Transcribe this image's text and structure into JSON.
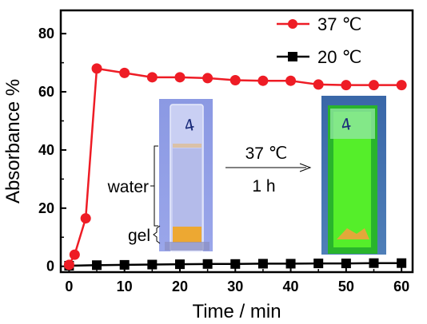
{
  "chart_data": {
    "type": "line",
    "xlabel": "Time / min",
    "ylabel": "Absorbance %",
    "xlim": [
      -1.5,
      62
    ],
    "ylim": [
      -2,
      88
    ],
    "xticks": [
      0,
      10,
      20,
      30,
      40,
      50,
      60
    ],
    "yticks": [
      0,
      20,
      40,
      60,
      80
    ],
    "legend_position": "top-right",
    "series": [
      {
        "name": "37 ℃",
        "color": "#ee1c25",
        "marker": "circle",
        "x": [
          0,
          1,
          3,
          5,
          10,
          15,
          20,
          25,
          30,
          35,
          40,
          45,
          50,
          55,
          60
        ],
        "y": [
          0.5,
          4,
          16.5,
          68,
          66.5,
          65,
          65,
          64.7,
          64,
          63.8,
          63.8,
          62.5,
          62.3,
          62.3,
          62.3
        ]
      },
      {
        "name": "20 ℃",
        "color": "#000000",
        "marker": "square",
        "x": [
          0,
          5,
          10,
          15,
          20,
          25,
          30,
          35,
          40,
          45,
          50,
          55,
          60
        ],
        "y": [
          0.2,
          0.4,
          0.5,
          0.6,
          0.7,
          0.8,
          0.8,
          0.9,
          0.9,
          1.0,
          1.0,
          1.1,
          1.1
        ]
      }
    ]
  },
  "inset": {
    "left_vial_label": "4",
    "right_vial_label": "4",
    "water_label": "water",
    "gel_label": "gel",
    "arrow_top_label": "37 ℃",
    "arrow_bottom_label": "1 h",
    "left_vial_liquid_color": "#b4bbea",
    "left_vial_gel_color": "#eda832",
    "right_vial_liquid_color": "#55ee2a",
    "right_vial_gel_color": "#e2a83a"
  }
}
